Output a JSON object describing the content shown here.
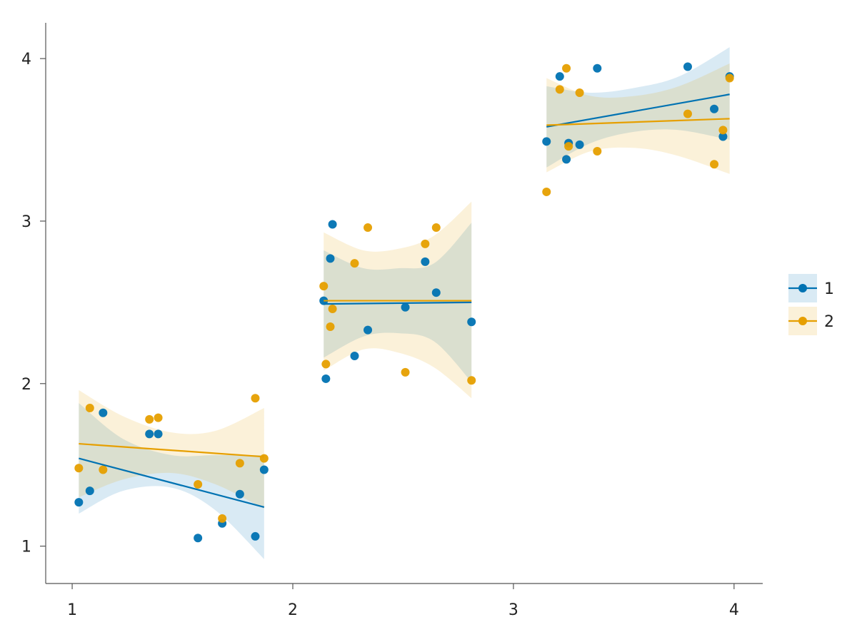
{
  "chart_data": {
    "type": "scatter",
    "title": "",
    "xlabel": "",
    "ylabel": "",
    "xlim": [
      0.88,
      4.13
    ],
    "ylim": [
      0.77,
      4.22
    ],
    "xticks": [
      "1",
      "2",
      "3",
      "4"
    ],
    "yticks": [
      "1",
      "2",
      "3",
      "4"
    ],
    "grid": false,
    "legend_position": "right",
    "series": [
      {
        "name": "1",
        "color": "#0072B2",
        "points": [
          [
            1.03,
            1.27
          ],
          [
            1.08,
            1.34
          ],
          [
            1.14,
            1.82
          ],
          [
            1.35,
            1.69
          ],
          [
            1.39,
            1.69
          ],
          [
            1.57,
            1.05
          ],
          [
            1.68,
            1.14
          ],
          [
            1.76,
            1.32
          ],
          [
            1.83,
            1.06
          ],
          [
            1.87,
            1.47
          ],
          [
            2.14,
            2.51
          ],
          [
            2.15,
            2.03
          ],
          [
            2.17,
            2.77
          ],
          [
            2.18,
            2.98
          ],
          [
            2.28,
            2.17
          ],
          [
            2.34,
            2.33
          ],
          [
            2.51,
            2.47
          ],
          [
            2.6,
            2.75
          ],
          [
            2.65,
            2.56
          ],
          [
            2.81,
            2.38
          ],
          [
            3.15,
            3.49
          ],
          [
            3.21,
            3.89
          ],
          [
            3.24,
            3.38
          ],
          [
            3.25,
            3.48
          ],
          [
            3.3,
            3.47
          ],
          [
            3.38,
            3.94
          ],
          [
            3.79,
            3.95
          ],
          [
            3.91,
            3.69
          ],
          [
            3.95,
            3.52
          ],
          [
            3.98,
            3.89
          ]
        ],
        "fits": [
          {
            "x": [
              1.03,
              1.87
            ],
            "y": [
              1.54,
              1.24
            ],
            "band": {
              "x": [
                1.03,
                1.23,
                1.45,
                1.65,
                1.87
              ],
              "lower": [
                1.2,
                1.34,
                1.36,
                1.22,
                0.92
              ],
              "upper": [
                1.88,
                1.66,
                1.56,
                1.56,
                1.56
              ]
            }
          },
          {
            "x": [
              2.14,
              2.81
            ],
            "y": [
              2.49,
              2.5
            ],
            "band": {
              "x": [
                2.14,
                2.32,
                2.48,
                2.64,
                2.81
              ],
              "lower": [
                2.16,
                2.29,
                2.31,
                2.26,
                2.01
              ],
              "upper": [
                2.82,
                2.71,
                2.71,
                2.74,
                2.99
              ]
            }
          },
          {
            "x": [
              3.15,
              3.98
            ],
            "y": [
              3.58,
              3.78
            ],
            "band": {
              "x": [
                3.15,
                3.35,
                3.55,
                3.75,
                3.98
              ],
              "lower": [
                3.33,
                3.48,
                3.55,
                3.56,
                3.5
              ],
              "upper": [
                3.83,
                3.79,
                3.82,
                3.89,
                4.07
              ]
            }
          }
        ]
      },
      {
        "name": "2",
        "color": "#E69F00",
        "points": [
          [
            1.03,
            1.48
          ],
          [
            1.08,
            1.85
          ],
          [
            1.14,
            1.47
          ],
          [
            1.35,
            1.78
          ],
          [
            1.39,
            1.79
          ],
          [
            1.57,
            1.38
          ],
          [
            1.68,
            1.17
          ],
          [
            1.76,
            1.51
          ],
          [
            1.83,
            1.91
          ],
          [
            1.87,
            1.54
          ],
          [
            2.14,
            2.6
          ],
          [
            2.15,
            2.12
          ],
          [
            2.17,
            2.35
          ],
          [
            2.18,
            2.46
          ],
          [
            2.28,
            2.74
          ],
          [
            2.34,
            2.96
          ],
          [
            2.51,
            2.07
          ],
          [
            2.6,
            2.86
          ],
          [
            2.65,
            2.96
          ],
          [
            2.81,
            2.02
          ],
          [
            3.15,
            3.18
          ],
          [
            3.21,
            3.81
          ],
          [
            3.24,
            3.94
          ],
          [
            3.25,
            3.46
          ],
          [
            3.3,
            3.79
          ],
          [
            3.38,
            3.43
          ],
          [
            3.79,
            3.66
          ],
          [
            3.91,
            3.35
          ],
          [
            3.95,
            3.56
          ],
          [
            3.98,
            3.88
          ]
        ],
        "fits": [
          {
            "x": [
              1.03,
              1.87
            ],
            "y": [
              1.63,
              1.55
            ],
            "band": {
              "x": [
                1.03,
                1.23,
                1.45,
                1.65,
                1.87
              ],
              "lower": [
                1.3,
                1.41,
                1.45,
                1.38,
                1.23
              ],
              "upper": [
                1.96,
                1.8,
                1.7,
                1.71,
                1.85
              ]
            }
          },
          {
            "x": [
              2.14,
              2.81
            ],
            "y": [
              2.51,
              2.51
            ],
            "band": {
              "x": [
                2.14,
                2.32,
                2.48,
                2.64,
                2.81
              ],
              "lower": [
                2.08,
                2.21,
                2.19,
                2.1,
                1.91
              ],
              "upper": [
                2.93,
                2.82,
                2.83,
                2.91,
                3.12
              ]
            }
          },
          {
            "x": [
              3.15,
              3.98
            ],
            "y": [
              3.59,
              3.63
            ],
            "band": {
              "x": [
                3.15,
                3.35,
                3.55,
                3.75,
                3.98
              ],
              "lower": [
                3.3,
                3.43,
                3.45,
                3.4,
                3.29
              ],
              "upper": [
                3.88,
                3.77,
                3.77,
                3.83,
                3.97
              ]
            }
          }
        ]
      }
    ]
  }
}
